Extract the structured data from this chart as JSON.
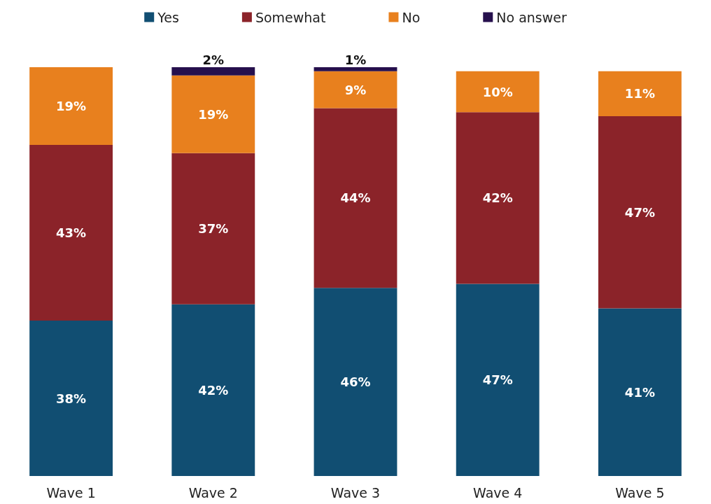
{
  "chart_data": {
    "type": "bar",
    "stacked": true,
    "legend": "top",
    "grid": false,
    "categories": [
      "Wave 1",
      "Wave 2",
      "Wave 3",
      "Wave 4",
      "Wave 5"
    ],
    "series": [
      {
        "name": "Yes",
        "color": "#114e72",
        "values": [
          38,
          42,
          46,
          47,
          41
        ],
        "value_labels": [
          "38%",
          "42%",
          "46%",
          "47%",
          "41%"
        ]
      },
      {
        "name": "Somewhat",
        "color": "#8b2329",
        "values": [
          43,
          37,
          44,
          42,
          47
        ],
        "value_labels": [
          "43%",
          "37%",
          "44%",
          "42%",
          "47%"
        ]
      },
      {
        "name": "No",
        "color": "#e8801e",
        "values": [
          19,
          19,
          9,
          10,
          11
        ],
        "value_labels": [
          "19%",
          "19%",
          "9%",
          "10%",
          "11%"
        ]
      },
      {
        "name": "No answer",
        "color": "#26104d",
        "values": [
          null,
          2,
          1,
          null,
          null
        ],
        "value_labels": [
          null,
          "2%",
          "1%",
          null,
          null
        ]
      }
    ]
  }
}
